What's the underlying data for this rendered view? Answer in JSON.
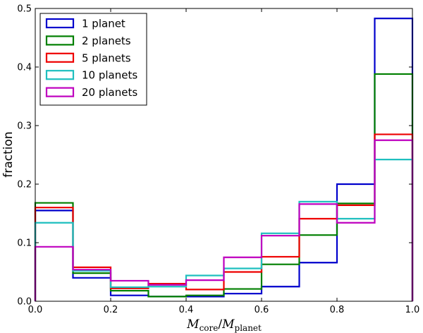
{
  "chart_data": {
    "type": "step-histogram",
    "title": "",
    "xlabel": "M_core/M_planet",
    "xlabel_parts": {
      "base1": "M",
      "sub1": "core",
      "sep": "/",
      "base2": "M",
      "sub2": "planet"
    },
    "ylabel": "fraction",
    "xlim": [
      0.0,
      1.0
    ],
    "ylim": [
      0.0,
      0.5
    ],
    "xticks": [
      "0.0",
      "0.2",
      "0.4",
      "0.6",
      "0.8",
      "1.0"
    ],
    "yticks": [
      "0.0",
      "0.1",
      "0.2",
      "0.3",
      "0.4",
      "0.5"
    ],
    "bin_edges": [
      0.0,
      0.1,
      0.2,
      0.3,
      0.4,
      0.5,
      0.6,
      0.7,
      0.8,
      0.9,
      1.0
    ],
    "legend_position": "top-left",
    "series": [
      {
        "name": "1 planet",
        "color": "#0000cc",
        "values": [
          0.155,
          0.04,
          0.01,
          0.008,
          0.008,
          0.013,
          0.025,
          0.066,
          0.2,
          0.483
        ]
      },
      {
        "name": "2 planets",
        "color": "#007f00",
        "values": [
          0.168,
          0.048,
          0.018,
          0.008,
          0.01,
          0.021,
          0.063,
          0.113,
          0.167,
          0.388
        ]
      },
      {
        "name": "5 planets",
        "color": "#ee0000",
        "values": [
          0.16,
          0.058,
          0.022,
          0.03,
          0.02,
          0.05,
          0.076,
          0.141,
          0.164,
          0.285
        ]
      },
      {
        "name": "10 planets",
        "color": "#1fbfbf",
        "values": [
          0.134,
          0.052,
          0.024,
          0.025,
          0.044,
          0.056,
          0.116,
          0.17,
          0.141,
          0.242
        ]
      },
      {
        "name": "20 planets",
        "color": "#bf00bf",
        "values": [
          0.093,
          0.054,
          0.035,
          0.028,
          0.036,
          0.075,
          0.112,
          0.166,
          0.134,
          0.275
        ]
      }
    ]
  }
}
